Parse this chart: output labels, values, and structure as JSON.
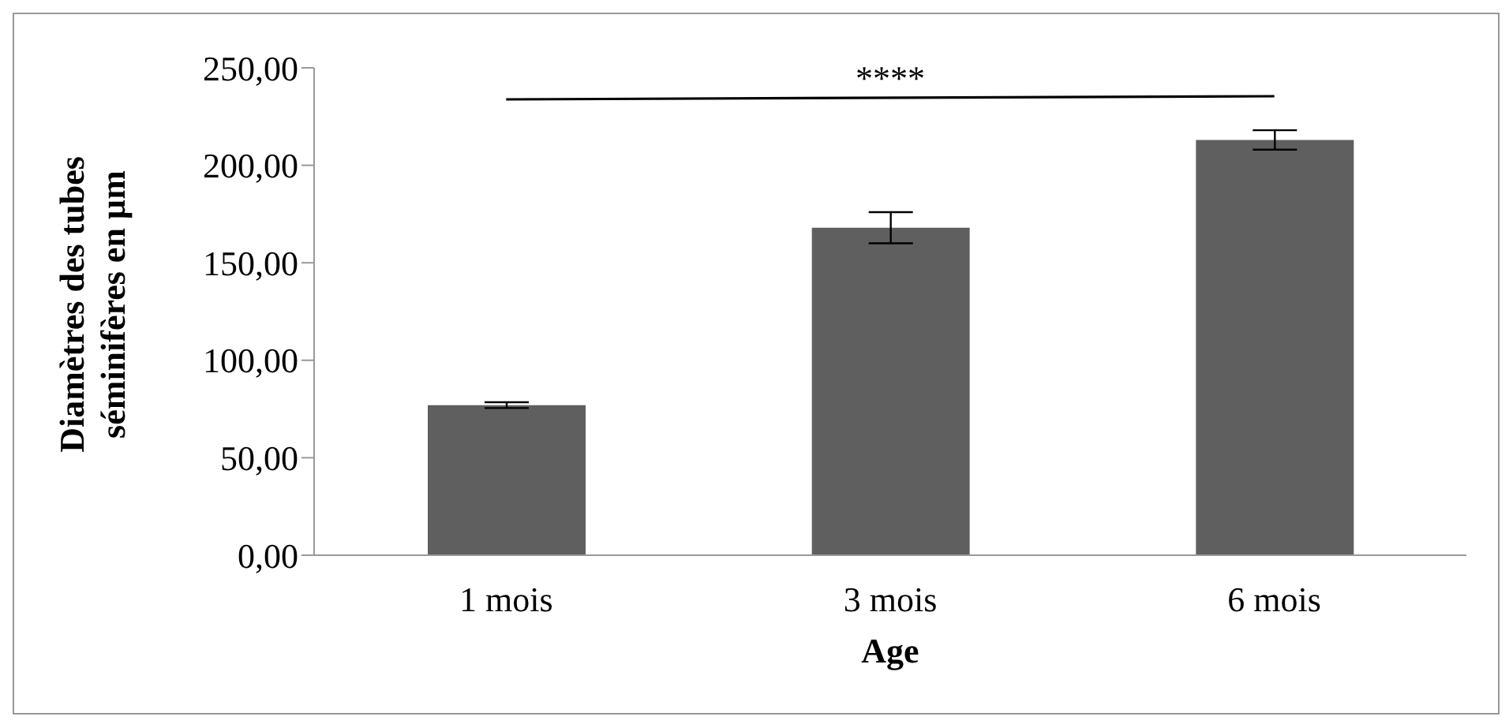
{
  "chart_data": {
    "type": "bar",
    "xlabel": "Age",
    "ylabel": "Diamètres des tubes séminifères en µm",
    "categories": [
      "1 mois",
      "3 mois",
      "6 mois"
    ],
    "values": [
      77,
      168,
      213
    ],
    "errors": [
      1.5,
      8,
      5
    ],
    "color": "#5f5f5f",
    "ylim": [
      0,
      250
    ],
    "yticks": [
      {
        "value": 0,
        "label": "0,00"
      },
      {
        "value": 50,
        "label": "50,00"
      },
      {
        "value": 100,
        "label": "100,00"
      },
      {
        "value": 150,
        "label": "150,00"
      },
      {
        "value": 200,
        "label": "200,00"
      },
      {
        "value": 250,
        "label": "250,00"
      }
    ],
    "grid": false,
    "annotations": [
      "****"
    ]
  }
}
